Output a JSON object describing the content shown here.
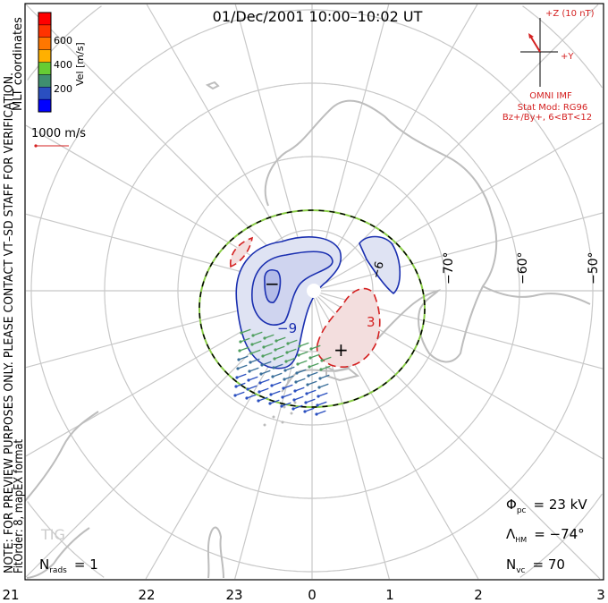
{
  "title": "01/Dec/2001 10:00–10:02 UT",
  "coordinates_label": "MLT coordinates",
  "note": "NOTE: FOR PREVIEW PURPOSES ONLY. PLEASE CONTACT VT–SD STAFF FOR VERIFICATION.",
  "fit_info": "FitOrder: 8, mapEX format",
  "colorbar": {
    "label": "Vel [m/s]",
    "ticks": [
      "600",
      "400",
      "200"
    ],
    "colors": [
      "#ff0000",
      "#ff3300",
      "#ff7700",
      "#ffb000",
      "#66cc33",
      "#3f8f6f",
      "#2a4fc0",
      "#0000ff"
    ]
  },
  "vector_scale": {
    "label": "1000 m/s"
  },
  "imf": {
    "z_label": "+Z (10 nT)",
    "y_label": "+Y",
    "source": "OMNI IMF",
    "stat_model": "Stat Mod: RG96",
    "condition": "Bz+/By+, 6<BT<12"
  },
  "latitude_labels": [
    "−70°",
    "−60°",
    "−50°"
  ],
  "contour_labels": [
    "−9",
    "3",
    "−6"
  ],
  "extrema": {
    "min": "−",
    "max": "+"
  },
  "station": "TIG",
  "stats": {
    "phi_pc_symbol": "Φ",
    "phi_pc_sub": "pc",
    "phi_pc_value": "= 23 kV",
    "lambda_hm_symbol": "Λ",
    "lambda_hm_sub": "HM",
    "lambda_hm_value": "= −74°",
    "n_vc_symbol": "N",
    "n_vc_sub": "vc",
    "n_vc_value": "= 70",
    "n_rads_symbol": "N",
    "n_rads_sub": "rads",
    "n_rads_value": "= 1"
  },
  "mlt_labels": [
    "21",
    "22",
    "23",
    "0",
    "1",
    "2",
    "3"
  ]
}
